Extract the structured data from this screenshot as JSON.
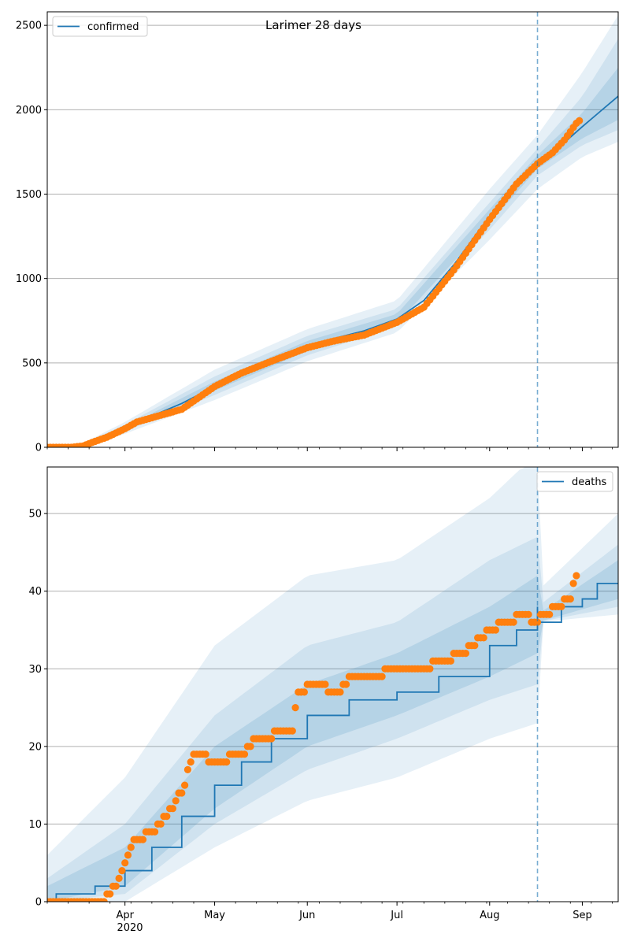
{
  "title": "Larimer 28 days",
  "x_ticks": [
    {
      "label": "Apr",
      "date": "2020-04-01"
    },
    {
      "label": "May",
      "date": "2020-05-01"
    },
    {
      "label": "Jun",
      "date": "2020-06-01"
    },
    {
      "label": "Jul",
      "date": "2020-07-01"
    },
    {
      "label": "Aug",
      "date": "2020-08-01"
    },
    {
      "label": "Sep",
      "date": "2020-09-01"
    }
  ],
  "year_label": "2020",
  "colors": {
    "model_line": "#1f77b4",
    "observed": "#ff7f0e",
    "band": "#1f77b4",
    "grid": "#b0b0b0"
  },
  "chart_data": [
    {
      "type": "line",
      "panel": "top",
      "title": "Larimer 28 days",
      "legend": [
        "confirmed"
      ],
      "legend_position": "upper-left",
      "x_range": [
        "2020-03-06",
        "2020-09-13"
      ],
      "ylim": [
        0,
        2580
      ],
      "y_ticks": [
        0,
        500,
        1000,
        1500,
        2000,
        2500
      ],
      "grid": "horizontal",
      "forecast_start": "2020-08-17",
      "series": [
        {
          "name": "confirmed",
          "role": "model",
          "points": [
            [
              "2020-03-06",
              0
            ],
            [
              "2020-03-13",
              2
            ],
            [
              "2020-03-18",
              12
            ],
            [
              "2020-03-23",
              40
            ],
            [
              "2020-03-28",
              85
            ],
            [
              "2020-04-04",
              140
            ],
            [
              "2020-04-10",
              185
            ],
            [
              "2020-04-20",
              260
            ],
            [
              "2020-05-01",
              360
            ],
            [
              "2020-05-10",
              440
            ],
            [
              "2020-05-20",
              520
            ],
            [
              "2020-06-01",
              600
            ],
            [
              "2020-06-10",
              645
            ],
            [
              "2020-06-20",
              690
            ],
            [
              "2020-07-01",
              760
            ],
            [
              "2020-07-10",
              870
            ],
            [
              "2020-07-20",
              1080
            ],
            [
              "2020-08-01",
              1370
            ],
            [
              "2020-08-10",
              1570
            ],
            [
              "2020-08-17",
              1690
            ],
            [
              "2020-08-25",
              1790
            ],
            [
              "2020-09-01",
              1900
            ],
            [
              "2020-09-07",
              1990
            ],
            [
              "2020-09-13",
              2080
            ]
          ]
        },
        {
          "name": "observed",
          "role": "observed",
          "points": [
            [
              "2020-03-06",
              0
            ],
            [
              "2020-03-14",
              0
            ],
            [
              "2020-03-18",
              8
            ],
            [
              "2020-03-22",
              35
            ],
            [
              "2020-03-26",
              60
            ],
            [
              "2020-04-01",
              110
            ],
            [
              "2020-04-05",
              150
            ],
            [
              "2020-04-10",
              175
            ],
            [
              "2020-04-20",
              225
            ],
            [
              "2020-05-01",
              360
            ],
            [
              "2020-05-10",
              440
            ],
            [
              "2020-05-20",
              510
            ],
            [
              "2020-06-01",
              590
            ],
            [
              "2020-06-10",
              630
            ],
            [
              "2020-06-20",
              665
            ],
            [
              "2020-07-01",
              740
            ],
            [
              "2020-07-10",
              830
            ],
            [
              "2020-07-20",
              1050
            ],
            [
              "2020-08-01",
              1350
            ],
            [
              "2020-08-10",
              1560
            ],
            [
              "2020-08-17",
              1680
            ],
            [
              "2020-08-22",
              1745
            ],
            [
              "2020-08-26",
              1820
            ],
            [
              "2020-08-30",
              1920
            ],
            [
              "2020-08-31",
              1935
            ]
          ]
        }
      ],
      "bands": [
        {
          "level": "outer",
          "upper": [
            [
              "2020-03-06",
              2
            ],
            [
              "2020-03-18",
              25
            ],
            [
              "2020-04-01",
              150
            ],
            [
              "2020-05-01",
              460
            ],
            [
              "2020-06-01",
              700
            ],
            [
              "2020-07-01",
              870
            ],
            [
              "2020-08-01",
              1530
            ],
            [
              "2020-08-17",
              1850
            ],
            [
              "2020-09-01",
              2220
            ],
            [
              "2020-09-13",
              2560
            ]
          ],
          "lower": [
            [
              "2020-03-06",
              0
            ],
            [
              "2020-03-18",
              4
            ],
            [
              "2020-04-01",
              80
            ],
            [
              "2020-05-01",
              280
            ],
            [
              "2020-06-01",
              510
            ],
            [
              "2020-07-01",
              680
            ],
            [
              "2020-08-01",
              1230
            ],
            [
              "2020-08-17",
              1530
            ],
            [
              "2020-09-01",
              1720
            ],
            [
              "2020-09-13",
              1810
            ]
          ]
        },
        {
          "level": "middle",
          "upper": [
            [
              "2020-03-06",
              1
            ],
            [
              "2020-03-18",
              20
            ],
            [
              "2020-04-01",
              135
            ],
            [
              "2020-05-01",
              420
            ],
            [
              "2020-06-01",
              660
            ],
            [
              "2020-07-01",
              820
            ],
            [
              "2020-08-01",
              1450
            ],
            [
              "2020-08-17",
              1770
            ],
            [
              "2020-09-01",
              2080
            ],
            [
              "2020-09-13",
              2420
            ]
          ],
          "lower": [
            [
              "2020-03-06",
              0
            ],
            [
              "2020-03-18",
              7
            ],
            [
              "2020-04-01",
              95
            ],
            [
              "2020-05-01",
              310
            ],
            [
              "2020-06-01",
              545
            ],
            [
              "2020-07-01",
              715
            ],
            [
              "2020-08-01",
              1290
            ],
            [
              "2020-08-17",
              1610
            ],
            [
              "2020-09-01",
              1790
            ],
            [
              "2020-09-13",
              1880
            ]
          ]
        },
        {
          "level": "inner",
          "upper": [
            [
              "2020-03-06",
              0
            ],
            [
              "2020-03-18",
              16
            ],
            [
              "2020-04-01",
              120
            ],
            [
              "2020-05-01",
              390
            ],
            [
              "2020-06-01",
              630
            ],
            [
              "2020-07-01",
              790
            ],
            [
              "2020-08-01",
              1410
            ],
            [
              "2020-08-17",
              1730
            ],
            [
              "2020-09-01",
              1980
            ],
            [
              "2020-09-13",
              2250
            ]
          ],
          "lower": [
            [
              "2020-03-06",
              0
            ],
            [
              "2020-03-18",
              9
            ],
            [
              "2020-04-01",
              105
            ],
            [
              "2020-05-01",
              335
            ],
            [
              "2020-06-01",
              570
            ],
            [
              "2020-07-01",
              735
            ],
            [
              "2020-08-01",
              1330
            ],
            [
              "2020-08-17",
              1650
            ],
            [
              "2020-09-01",
              1830
            ],
            [
              "2020-09-13",
              1940
            ]
          ]
        }
      ]
    },
    {
      "type": "line",
      "panel": "bottom",
      "title": "",
      "legend": [
        "deaths"
      ],
      "legend_position": "upper-right",
      "x_range": [
        "2020-03-06",
        "2020-09-13"
      ],
      "ylim": [
        0,
        56
      ],
      "y_ticks": [
        0,
        10,
        20,
        30,
        40,
        50
      ],
      "grid": "horizontal",
      "forecast_start": "2020-08-17",
      "series": [
        {
          "name": "deaths",
          "role": "model",
          "step": true,
          "points": [
            [
              "2020-03-06",
              0
            ],
            [
              "2020-03-09",
              1
            ],
            [
              "2020-03-22",
              2
            ],
            [
              "2020-04-01",
              4
            ],
            [
              "2020-04-10",
              7
            ],
            [
              "2020-04-20",
              11
            ],
            [
              "2020-05-01",
              15
            ],
            [
              "2020-05-10",
              18
            ],
            [
              "2020-05-20",
              21
            ],
            [
              "2020-06-01",
              24
            ],
            [
              "2020-06-15",
              26
            ],
            [
              "2020-07-01",
              27
            ],
            [
              "2020-07-15",
              29
            ],
            [
              "2020-08-01",
              33
            ],
            [
              "2020-08-10",
              35
            ],
            [
              "2020-08-17",
              38
            ],
            [
              "2020-08-17",
              36
            ],
            [
              "2020-08-25",
              38
            ],
            [
              "2020-09-01",
              39
            ],
            [
              "2020-09-06",
              41
            ],
            [
              "2020-09-13",
              41
            ]
          ]
        },
        {
          "name": "observed",
          "role": "observed",
          "points": [
            [
              "2020-03-06",
              0
            ],
            [
              "2020-03-25",
              0
            ],
            [
              "2020-03-27",
              1
            ],
            [
              "2020-03-30",
              3
            ],
            [
              "2020-04-03",
              7
            ],
            [
              "2020-04-05",
              8
            ],
            [
              "2020-04-11",
              9
            ],
            [
              "2020-04-17",
              12
            ],
            [
              "2020-04-21",
              15
            ],
            [
              "2020-04-23",
              18
            ],
            [
              "2020-04-25",
              19
            ],
            [
              "2020-05-02",
              18
            ],
            [
              "2020-05-10",
              19
            ],
            [
              "2020-05-15",
              21
            ],
            [
              "2020-05-27",
              22
            ],
            [
              "2020-05-29",
              27
            ],
            [
              "2020-06-03",
              28
            ],
            [
              "2020-06-12",
              27
            ],
            [
              "2020-06-16",
              29
            ],
            [
              "2020-07-08",
              30
            ],
            [
              "2020-07-17",
              31
            ],
            [
              "2020-07-23",
              32
            ],
            [
              "2020-07-29",
              34
            ],
            [
              "2020-08-01",
              35
            ],
            [
              "2020-08-12",
              37
            ],
            [
              "2020-08-16",
              36
            ],
            [
              "2020-08-20",
              37
            ],
            [
              "2020-08-28",
              39
            ],
            [
              "2020-08-30",
              42
            ]
          ]
        }
      ],
      "bands": [
        {
          "level": "outer",
          "upper": [
            [
              "2020-03-06",
              6
            ],
            [
              "2020-04-01",
              16
            ],
            [
              "2020-05-01",
              33
            ],
            [
              "2020-06-01",
              42
            ],
            [
              "2020-07-01",
              44
            ],
            [
              "2020-08-01",
              52
            ],
            [
              "2020-08-12",
              56
            ],
            [
              "2020-08-17",
              56
            ],
            [
              "2020-08-17",
              40
            ],
            [
              "2020-09-13",
              50
            ]
          ],
          "lower": [
            [
              "2020-03-06",
              0
            ],
            [
              "2020-04-01",
              0
            ],
            [
              "2020-05-01",
              7
            ],
            [
              "2020-06-01",
              13
            ],
            [
              "2020-07-01",
              16
            ],
            [
              "2020-08-01",
              21
            ],
            [
              "2020-08-17",
              23
            ],
            [
              "2020-08-17",
              36
            ],
            [
              "2020-09-13",
              37
            ]
          ]
        },
        {
          "level": "middle",
          "upper": [
            [
              "2020-03-06",
              3
            ],
            [
              "2020-04-01",
              10
            ],
            [
              "2020-05-01",
              24
            ],
            [
              "2020-06-01",
              33
            ],
            [
              "2020-07-01",
              36
            ],
            [
              "2020-08-01",
              44
            ],
            [
              "2020-08-17",
              47
            ],
            [
              "2020-08-17",
              38
            ],
            [
              "2020-09-13",
              46
            ]
          ],
          "lower": [
            [
              "2020-03-06",
              0
            ],
            [
              "2020-04-01",
              1
            ],
            [
              "2020-05-01",
              10
            ],
            [
              "2020-06-01",
              17
            ],
            [
              "2020-07-01",
              21
            ],
            [
              "2020-08-01",
              26
            ],
            [
              "2020-08-17",
              28
            ],
            [
              "2020-08-17",
              36
            ],
            [
              "2020-09-13",
              38
            ]
          ]
        },
        {
          "level": "inner",
          "upper": [
            [
              "2020-03-06",
              2
            ],
            [
              "2020-04-01",
              7
            ],
            [
              "2020-05-01",
              20
            ],
            [
              "2020-06-01",
              28
            ],
            [
              "2020-07-01",
              32
            ],
            [
              "2020-08-01",
              38
            ],
            [
              "2020-08-17",
              42
            ],
            [
              "2020-08-17",
              37
            ],
            [
              "2020-09-13",
              44
            ]
          ],
          "lower": [
            [
              "2020-03-06",
              0
            ],
            [
              "2020-04-01",
              2
            ],
            [
              "2020-05-01",
              12
            ],
            [
              "2020-06-01",
              20
            ],
            [
              "2020-07-01",
              24
            ],
            [
              "2020-08-01",
              29
            ],
            [
              "2020-08-17",
              32
            ],
            [
              "2020-08-17",
              36
            ],
            [
              "2020-09-13",
              39
            ]
          ]
        }
      ]
    }
  ]
}
